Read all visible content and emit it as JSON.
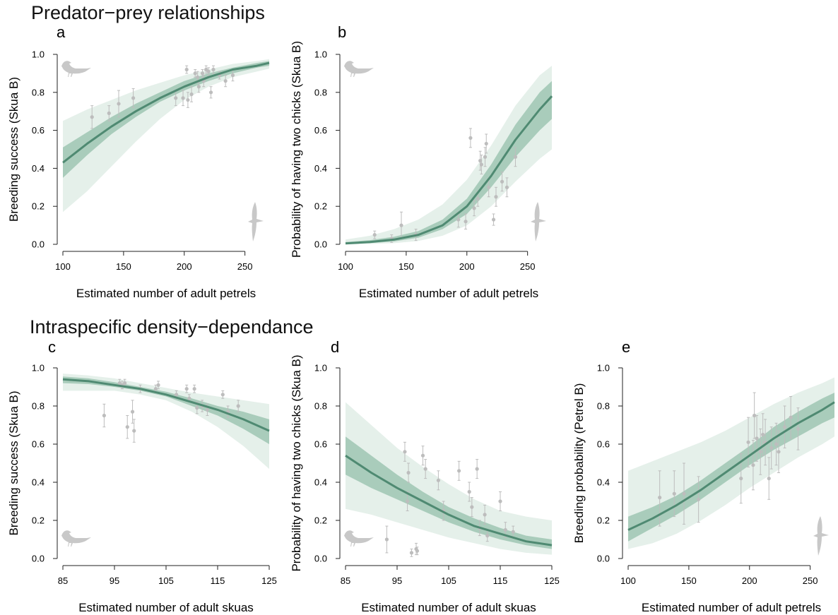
{
  "sections": {
    "top_title": "Predator−prey relationships",
    "bottom_title": "Intraspecific density−dependance"
  },
  "colors": {
    "line": "#4f8a72",
    "ci_inner": "#a9ccbb",
    "ci_outer": "#e5f0ea",
    "points": "#bdbdbd",
    "silhouette": "#c8c8c8",
    "axis": "#222222"
  },
  "chart_data": [
    {
      "panel": "a",
      "type": "line",
      "xlabel": "Estimated number of adult petrels",
      "ylabel": "Breeding success (Skua B)",
      "xlim": [
        100,
        270
      ],
      "ylim": [
        0,
        1
      ],
      "xticks": [
        100,
        150,
        200,
        250
      ],
      "yticks": [
        0.0,
        0.2,
        0.4,
        0.6,
        0.8,
        1.0
      ],
      "grid": false,
      "icons": [
        {
          "name": "skua-silhouette-icon",
          "pos": "top-left"
        },
        {
          "name": "petrel-silhouette-icon",
          "pos": "bottom-right"
        }
      ],
      "curve": {
        "x": [
          100,
          120,
          140,
          160,
          180,
          200,
          220,
          240,
          260,
          270
        ],
        "y": [
          0.43,
          0.53,
          0.62,
          0.7,
          0.77,
          0.83,
          0.88,
          0.92,
          0.94,
          0.955
        ]
      },
      "ci_inner": {
        "lower": [
          0.35,
          0.47,
          0.58,
          0.67,
          0.75,
          0.81,
          0.86,
          0.9,
          0.93,
          0.94
        ],
        "upper": [
          0.51,
          0.59,
          0.67,
          0.74,
          0.8,
          0.86,
          0.9,
          0.93,
          0.955,
          0.965
        ]
      },
      "ci_outer": {
        "lower": [
          0.17,
          0.28,
          0.41,
          0.54,
          0.66,
          0.76,
          0.83,
          0.88,
          0.91,
          0.925
        ],
        "upper": [
          0.65,
          0.71,
          0.76,
          0.81,
          0.85,
          0.89,
          0.92,
          0.95,
          0.965,
          0.975
        ]
      },
      "points": [
        {
          "x": 124,
          "y": 0.67,
          "lo": 0.61,
          "hi": 0.73
        },
        {
          "x": 138,
          "y": 0.69,
          "lo": 0.65,
          "hi": 0.73
        },
        {
          "x": 146,
          "y": 0.74,
          "lo": 0.67,
          "hi": 0.81
        },
        {
          "x": 158,
          "y": 0.77,
          "lo": 0.72,
          "hi": 0.82
        },
        {
          "x": 193,
          "y": 0.77,
          "lo": 0.73,
          "hi": 0.81
        },
        {
          "x": 199,
          "y": 0.77,
          "lo": 0.73,
          "hi": 0.81
        },
        {
          "x": 202,
          "y": 0.92,
          "lo": 0.9,
          "hi": 0.94
        },
        {
          "x": 203,
          "y": 0.76,
          "lo": 0.72,
          "hi": 0.8
        },
        {
          "x": 206,
          "y": 0.79,
          "lo": 0.75,
          "hi": 0.83
        },
        {
          "x": 209,
          "y": 0.9,
          "lo": 0.88,
          "hi": 0.92
        },
        {
          "x": 211,
          "y": 0.88,
          "lo": 0.85,
          "hi": 0.91
        },
        {
          "x": 212,
          "y": 0.83,
          "lo": 0.8,
          "hi": 0.86
        },
        {
          "x": 215,
          "y": 0.9,
          "lo": 0.88,
          "hi": 0.92
        },
        {
          "x": 216,
          "y": 0.86,
          "lo": 0.83,
          "hi": 0.89
        },
        {
          "x": 218,
          "y": 0.92,
          "lo": 0.9,
          "hi": 0.94
        },
        {
          "x": 220,
          "y": 0.91,
          "lo": 0.89,
          "hi": 0.93
        },
        {
          "x": 222,
          "y": 0.8,
          "lo": 0.77,
          "hi": 0.83
        },
        {
          "x": 224,
          "y": 0.92,
          "lo": 0.9,
          "hi": 0.94
        },
        {
          "x": 229,
          "y": 0.89,
          "lo": 0.87,
          "hi": 0.91
        },
        {
          "x": 234,
          "y": 0.86,
          "lo": 0.83,
          "hi": 0.89
        },
        {
          "x": 240,
          "y": 0.89,
          "lo": 0.86,
          "hi": 0.92
        }
      ]
    },
    {
      "panel": "b",
      "type": "line",
      "xlabel": "Estimated number of adult petrels",
      "ylabel": "Probability of having two chicks (Skua B)",
      "xlim": [
        100,
        270
      ],
      "ylim": [
        0,
        1
      ],
      "xticks": [
        100,
        150,
        200,
        250
      ],
      "yticks": [
        0.0,
        0.2,
        0.4,
        0.6,
        0.8,
        1.0
      ],
      "grid": false,
      "icons": [
        {
          "name": "skua-silhouette-icon",
          "pos": "top-left"
        },
        {
          "name": "petrel-silhouette-icon",
          "pos": "bottom-right"
        }
      ],
      "curve": {
        "x": [
          100,
          120,
          140,
          160,
          180,
          200,
          220,
          240,
          260,
          270
        ],
        "y": [
          0.005,
          0.012,
          0.025,
          0.05,
          0.1,
          0.2,
          0.36,
          0.55,
          0.71,
          0.78
        ]
      },
      "ci_inner": {
        "lower": [
          0.002,
          0.006,
          0.015,
          0.035,
          0.08,
          0.16,
          0.3,
          0.46,
          0.6,
          0.66
        ],
        "upper": [
          0.012,
          0.022,
          0.04,
          0.07,
          0.13,
          0.24,
          0.42,
          0.63,
          0.8,
          0.86
        ]
      },
      "ci_outer": {
        "lower": [
          0.0,
          0.002,
          0.006,
          0.018,
          0.045,
          0.1,
          0.2,
          0.33,
          0.45,
          0.5
        ],
        "upper": [
          0.025,
          0.045,
          0.08,
          0.13,
          0.21,
          0.34,
          0.52,
          0.73,
          0.89,
          0.94
        ]
      },
      "points": [
        {
          "x": 124,
          "y": 0.05,
          "lo": 0.03,
          "hi": 0.07
        },
        {
          "x": 138,
          "y": 0.03,
          "lo": 0.01,
          "hi": 0.05
        },
        {
          "x": 146,
          "y": 0.1,
          "lo": 0.03,
          "hi": 0.17
        },
        {
          "x": 158,
          "y": 0.05,
          "lo": 0.02,
          "hi": 0.08
        },
        {
          "x": 193,
          "y": 0.13,
          "lo": 0.09,
          "hi": 0.17
        },
        {
          "x": 199,
          "y": 0.12,
          "lo": 0.08,
          "hi": 0.16
        },
        {
          "x": 203,
          "y": 0.56,
          "lo": 0.51,
          "hi": 0.61
        },
        {
          "x": 206,
          "y": 0.19,
          "lo": 0.15,
          "hi": 0.23
        },
        {
          "x": 209,
          "y": 0.24,
          "lo": 0.2,
          "hi": 0.28
        },
        {
          "x": 211,
          "y": 0.44,
          "lo": 0.39,
          "hi": 0.49
        },
        {
          "x": 212,
          "y": 0.42,
          "lo": 0.37,
          "hi": 0.47
        },
        {
          "x": 215,
          "y": 0.46,
          "lo": 0.41,
          "hi": 0.51
        },
        {
          "x": 216,
          "y": 0.53,
          "lo": 0.48,
          "hi": 0.58
        },
        {
          "x": 218,
          "y": 0.3,
          "lo": 0.25,
          "hi": 0.35
        },
        {
          "x": 222,
          "y": 0.13,
          "lo": 0.1,
          "hi": 0.16
        },
        {
          "x": 224,
          "y": 0.25,
          "lo": 0.2,
          "hi": 0.3
        },
        {
          "x": 229,
          "y": 0.33,
          "lo": 0.28,
          "hi": 0.38
        },
        {
          "x": 233,
          "y": 0.3,
          "lo": 0.25,
          "hi": 0.35
        },
        {
          "x": 240,
          "y": 0.46,
          "lo": 0.41,
          "hi": 0.51
        }
      ]
    },
    {
      "panel": "c",
      "type": "line",
      "xlabel": "Estimated number of adult skuas",
      "ylabel": "Breeding success (Skua B)",
      "xlim": [
        85,
        125
      ],
      "ylim": [
        0,
        1
      ],
      "xticks": [
        85,
        95,
        105,
        115,
        125
      ],
      "yticks": [
        0.0,
        0.2,
        0.4,
        0.6,
        0.8,
        1.0
      ],
      "grid": false,
      "icons": [
        {
          "name": "skua-silhouette-icon",
          "pos": "bottom-left"
        }
      ],
      "curve": {
        "x": [
          85,
          90,
          95,
          100,
          105,
          110,
          115,
          120,
          125
        ],
        "y": [
          0.94,
          0.93,
          0.91,
          0.89,
          0.86,
          0.82,
          0.78,
          0.73,
          0.67
        ]
      },
      "ci_inner": {
        "lower": [
          0.92,
          0.915,
          0.9,
          0.88,
          0.85,
          0.8,
          0.75,
          0.68,
          0.6
        ],
        "upper": [
          0.955,
          0.945,
          0.925,
          0.9,
          0.875,
          0.84,
          0.8,
          0.77,
          0.73
        ]
      },
      "ci_outer": {
        "lower": [
          0.88,
          0.88,
          0.88,
          0.86,
          0.83,
          0.77,
          0.69,
          0.59,
          0.47
        ],
        "upper": [
          0.97,
          0.96,
          0.945,
          0.92,
          0.895,
          0.87,
          0.85,
          0.83,
          0.81
        ]
      },
      "points": [
        {
          "x": 93,
          "y": 0.75,
          "lo": 0.69,
          "hi": 0.81
        },
        {
          "x": 96,
          "y": 0.92,
          "lo": 0.9,
          "hi": 0.94
        },
        {
          "x": 96.5,
          "y": 0.91,
          "lo": 0.89,
          "hi": 0.93
        },
        {
          "x": 97,
          "y": 0.92,
          "lo": 0.9,
          "hi": 0.94
        },
        {
          "x": 97.5,
          "y": 0.69,
          "lo": 0.63,
          "hi": 0.75
        },
        {
          "x": 98.5,
          "y": 0.77,
          "lo": 0.71,
          "hi": 0.83
        },
        {
          "x": 98.8,
          "y": 0.67,
          "lo": 0.61,
          "hi": 0.73
        },
        {
          "x": 100,
          "y": 0.89,
          "lo": 0.87,
          "hi": 0.91
        },
        {
          "x": 103,
          "y": 0.89,
          "lo": 0.87,
          "hi": 0.91
        },
        {
          "x": 103.5,
          "y": 0.91,
          "lo": 0.89,
          "hi": 0.93
        },
        {
          "x": 107,
          "y": 0.86,
          "lo": 0.84,
          "hi": 0.88
        },
        {
          "x": 109,
          "y": 0.89,
          "lo": 0.87,
          "hi": 0.91
        },
        {
          "x": 109.5,
          "y": 0.84,
          "lo": 0.82,
          "hi": 0.86
        },
        {
          "x": 110.5,
          "y": 0.89,
          "lo": 0.87,
          "hi": 0.91
        },
        {
          "x": 111,
          "y": 0.79,
          "lo": 0.76,
          "hi": 0.82
        },
        {
          "x": 112,
          "y": 0.8,
          "lo": 0.77,
          "hi": 0.83
        },
        {
          "x": 113,
          "y": 0.78,
          "lo": 0.75,
          "hi": 0.81
        },
        {
          "x": 116,
          "y": 0.86,
          "lo": 0.84,
          "hi": 0.88
        },
        {
          "x": 117,
          "y": 0.77,
          "lo": 0.74,
          "hi": 0.8
        },
        {
          "x": 119,
          "y": 0.8,
          "lo": 0.77,
          "hi": 0.83
        }
      ]
    },
    {
      "panel": "d",
      "type": "line",
      "xlabel": "Estimated number of adult skuas",
      "ylabel": "Probability of having two chicks (Skua B)",
      "xlim": [
        85,
        125
      ],
      "ylim": [
        0,
        1
      ],
      "xticks": [
        85,
        95,
        105,
        115,
        125
      ],
      "yticks": [
        0.0,
        0.2,
        0.4,
        0.6,
        0.8,
        1.0
      ],
      "grid": false,
      "icons": [
        {
          "name": "skua-silhouette-icon",
          "pos": "bottom-left"
        }
      ],
      "curve": {
        "x": [
          85,
          90,
          95,
          100,
          105,
          110,
          115,
          120,
          125
        ],
        "y": [
          0.54,
          0.45,
          0.37,
          0.3,
          0.23,
          0.17,
          0.13,
          0.09,
          0.07
        ]
      },
      "ci_inner": {
        "lower": [
          0.44,
          0.37,
          0.31,
          0.25,
          0.19,
          0.14,
          0.1,
          0.07,
          0.05
        ],
        "upper": [
          0.64,
          0.54,
          0.44,
          0.35,
          0.27,
          0.21,
          0.16,
          0.12,
          0.1
        ]
      },
      "ci_outer": {
        "lower": [
          0.26,
          0.23,
          0.19,
          0.15,
          0.11,
          0.08,
          0.05,
          0.03,
          0.02
        ],
        "upper": [
          0.82,
          0.7,
          0.58,
          0.48,
          0.39,
          0.31,
          0.25,
          0.22,
          0.2
        ]
      },
      "points": [
        {
          "x": 93,
          "y": 0.1,
          "lo": 0.03,
          "hi": 0.17
        },
        {
          "x": 96.5,
          "y": 0.56,
          "lo": 0.51,
          "hi": 0.61
        },
        {
          "x": 97,
          "y": 0.3,
          "lo": 0.25,
          "hi": 0.35
        },
        {
          "x": 97.2,
          "y": 0.45,
          "lo": 0.4,
          "hi": 0.5
        },
        {
          "x": 97.8,
          "y": 0.03,
          "lo": 0.01,
          "hi": 0.05
        },
        {
          "x": 98.7,
          "y": 0.05,
          "lo": 0.02,
          "hi": 0.08
        },
        {
          "x": 98.9,
          "y": 0.04,
          "lo": 0.02,
          "hi": 0.06
        },
        {
          "x": 100,
          "y": 0.54,
          "lo": 0.49,
          "hi": 0.59
        },
        {
          "x": 100.5,
          "y": 0.47,
          "lo": 0.42,
          "hi": 0.52
        },
        {
          "x": 103,
          "y": 0.41,
          "lo": 0.36,
          "hi": 0.46
        },
        {
          "x": 104,
          "y": 0.25,
          "lo": 0.2,
          "hi": 0.3
        },
        {
          "x": 107,
          "y": 0.46,
          "lo": 0.41,
          "hi": 0.51
        },
        {
          "x": 109,
          "y": 0.35,
          "lo": 0.3,
          "hi": 0.4
        },
        {
          "x": 109.5,
          "y": 0.27,
          "lo": 0.22,
          "hi": 0.32
        },
        {
          "x": 110.5,
          "y": 0.47,
          "lo": 0.42,
          "hi": 0.52
        },
        {
          "x": 111,
          "y": 0.16,
          "lo": 0.12,
          "hi": 0.2
        },
        {
          "x": 112,
          "y": 0.23,
          "lo": 0.18,
          "hi": 0.28
        },
        {
          "x": 112.5,
          "y": 0.12,
          "lo": 0.09,
          "hi": 0.15
        },
        {
          "x": 115,
          "y": 0.3,
          "lo": 0.25,
          "hi": 0.35
        },
        {
          "x": 116,
          "y": 0.15,
          "lo": 0.11,
          "hi": 0.19
        },
        {
          "x": 117.5,
          "y": 0.14,
          "lo": 0.11,
          "hi": 0.17
        }
      ]
    },
    {
      "panel": "e",
      "type": "line",
      "xlabel": "Estimated number of adult petrels",
      "ylabel": "Breeding probability (Petrel B)",
      "xlim": [
        100,
        270
      ],
      "ylim": [
        0,
        1
      ],
      "xticks": [
        100,
        150,
        200,
        250
      ],
      "yticks": [
        0.0,
        0.2,
        0.4,
        0.6,
        0.8,
        1.0
      ],
      "grid": false,
      "icons": [
        {
          "name": "petrel-silhouette-icon",
          "pos": "bottom-right"
        }
      ],
      "curve": {
        "x": [
          100,
          120,
          140,
          160,
          180,
          200,
          220,
          240,
          260,
          270
        ],
        "y": [
          0.15,
          0.21,
          0.28,
          0.36,
          0.45,
          0.54,
          0.63,
          0.71,
          0.78,
          0.82
        ]
      },
      "ci_inner": {
        "lower": [
          0.09,
          0.16,
          0.23,
          0.31,
          0.4,
          0.49,
          0.57,
          0.64,
          0.71,
          0.74
        ],
        "upper": [
          0.22,
          0.27,
          0.33,
          0.41,
          0.5,
          0.59,
          0.69,
          0.77,
          0.84,
          0.87
        ]
      },
      "ci_outer": {
        "lower": [
          0.05,
          0.08,
          0.13,
          0.2,
          0.28,
          0.37,
          0.45,
          0.53,
          0.6,
          0.64
        ],
        "upper": [
          0.46,
          0.51,
          0.56,
          0.61,
          0.67,
          0.74,
          0.81,
          0.87,
          0.92,
          0.95
        ]
      },
      "points": [
        {
          "x": 126,
          "y": 0.32,
          "lo": 0.17,
          "hi": 0.46
        },
        {
          "x": 138,
          "y": 0.34,
          "lo": 0.22,
          "hi": 0.46
        },
        {
          "x": 146,
          "y": 0.34,
          "lo": 0.18,
          "hi": 0.5
        },
        {
          "x": 158,
          "y": 0.31,
          "lo": 0.19,
          "hi": 0.43
        },
        {
          "x": 193,
          "y": 0.42,
          "lo": 0.29,
          "hi": 0.55
        },
        {
          "x": 199,
          "y": 0.61,
          "lo": 0.48,
          "hi": 0.74
        },
        {
          "x": 203,
          "y": 0.49,
          "lo": 0.36,
          "hi": 0.62
        },
        {
          "x": 204,
          "y": 0.75,
          "lo": 0.63,
          "hi": 0.87
        },
        {
          "x": 206,
          "y": 0.63,
          "lo": 0.51,
          "hi": 0.75
        },
        {
          "x": 209,
          "y": 0.56,
          "lo": 0.44,
          "hi": 0.68
        },
        {
          "x": 211,
          "y": 0.65,
          "lo": 0.54,
          "hi": 0.76
        },
        {
          "x": 213,
          "y": 0.61,
          "lo": 0.49,
          "hi": 0.73
        },
        {
          "x": 216,
          "y": 0.42,
          "lo": 0.31,
          "hi": 0.53
        },
        {
          "x": 218,
          "y": 0.58,
          "lo": 0.47,
          "hi": 0.69
        },
        {
          "x": 222,
          "y": 0.6,
          "lo": 0.49,
          "hi": 0.71
        },
        {
          "x": 224,
          "y": 0.56,
          "lo": 0.45,
          "hi": 0.67
        },
        {
          "x": 229,
          "y": 0.69,
          "lo": 0.58,
          "hi": 0.8
        },
        {
          "x": 234,
          "y": 0.74,
          "lo": 0.63,
          "hi": 0.85
        },
        {
          "x": 240,
          "y": 0.68,
          "lo": 0.57,
          "hi": 0.79
        }
      ]
    }
  ]
}
